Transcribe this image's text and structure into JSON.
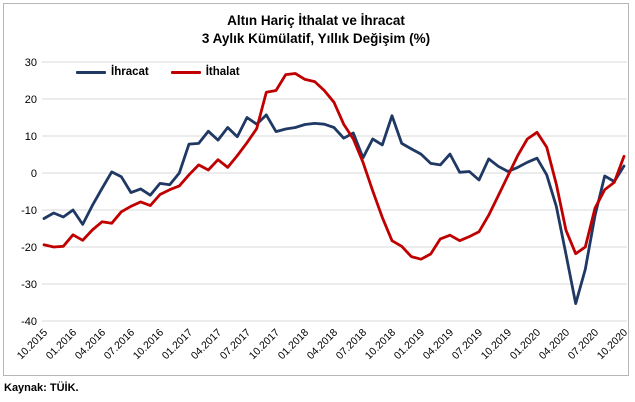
{
  "source": "Kaynak: TÜİK.",
  "legend": {
    "ihracat": "İhracat",
    "ithalat": "İthalat"
  },
  "chart_data": {
    "type": "line",
    "title": "Altın Hariç İthalat ve İhracat",
    "subtitle": "3 Aylık Kümülatif, Yıllık Değişim (%)",
    "x_start": "10.2015",
    "x_end": "10.2020",
    "x_frequency": "monthly",
    "x_tick_labels": [
      "10.2015",
      "01.2016",
      "04.2016",
      "07.2016",
      "10.2016",
      "01.2017",
      "04.2017",
      "07.2017",
      "10.2017",
      "01.2018",
      "04.2018",
      "07.2018",
      "10.2018",
      "01.2019",
      "04.2019",
      "07.2019",
      "10.2019",
      "01.2020",
      "04.2020",
      "07.2020",
      "10.2020"
    ],
    "x_ticks_every_n_points": 3,
    "y_ticks": [
      30,
      20,
      10,
      0,
      -10,
      -20,
      -30,
      -40
    ],
    "ylim": [
      -40,
      30
    ],
    "grid": "horizontal",
    "gridline_color": "#d9d9d9",
    "legend_position": "top-left-inside",
    "series": [
      {
        "name": "İhracat",
        "color": "#1f3864",
        "values": [
          -12.3,
          -10.8,
          -11.9,
          -10.0,
          -13.9,
          -8.8,
          -4.2,
          0.3,
          -1.0,
          -5.3,
          -4.3,
          -6.0,
          -2.8,
          -3.2,
          0.0,
          7.8,
          8.0,
          11.3,
          8.9,
          12.3,
          9.8,
          15.0,
          13.2,
          15.7,
          11.2,
          11.9,
          12.3,
          13.1,
          13.4,
          13.2,
          12.3,
          9.4,
          10.8,
          4.1,
          9.2,
          7.6,
          15.5,
          8.0,
          6.5,
          5.1,
          2.6,
          2.2,
          5.1,
          0.2,
          0.4,
          -1.9,
          3.8,
          1.8,
          0.4,
          1.5,
          2.9,
          4.0,
          -0.5,
          -9.0,
          -22.0,
          -35.3,
          -26.0,
          -11.5,
          -0.8,
          -2.3,
          1.9
        ]
      },
      {
        "name": "İthalat",
        "color": "#c00000",
        "values": [
          -19.4,
          -20.0,
          -19.8,
          -16.7,
          -18.2,
          -15.4,
          -13.2,
          -13.6,
          -10.5,
          -9.0,
          -7.8,
          -8.8,
          -5.8,
          -4.5,
          -3.5,
          -0.5,
          2.2,
          0.8,
          3.6,
          1.5,
          4.7,
          8.2,
          12.0,
          21.8,
          22.3,
          26.6,
          26.9,
          25.3,
          24.7,
          22.3,
          19.1,
          13.2,
          9.2,
          2.9,
          -4.8,
          -12.0,
          -18.3,
          -19.8,
          -22.6,
          -23.3,
          -21.9,
          -17.8,
          -16.8,
          -18.3,
          -17.2,
          -15.9,
          -11.4,
          -6.1,
          -0.7,
          4.7,
          9.2,
          11.0,
          7.0,
          -3.0,
          -15.5,
          -21.8,
          -20.0,
          -9.5,
          -4.5,
          -2.5,
          4.5
        ]
      }
    ]
  }
}
